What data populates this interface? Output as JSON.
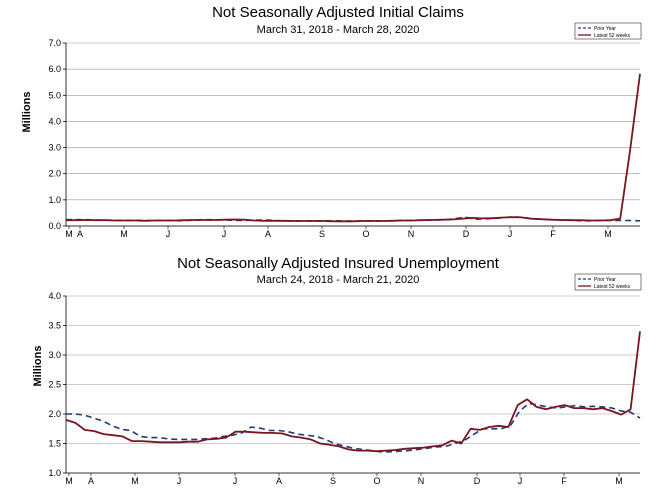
{
  "chart_data": [
    {
      "type": "line",
      "title": "Not Seasonally Adjusted Initial Claims",
      "subtitle": "March 31, 2018  -  March 28, 2020",
      "ylabel": "Millions",
      "xlabel": "",
      "ylim": [
        0,
        7
      ],
      "yticks": [
        "0.0",
        "1.0",
        "2.0",
        "3.0",
        "4.0",
        "5.0",
        "6.0",
        "7.0"
      ],
      "month_ticks": [
        "M",
        "A",
        "M",
        "J",
        "J",
        "A",
        "S",
        "O",
        "N",
        "D",
        "J",
        "F",
        "M"
      ],
      "grid": true,
      "legend_position": "top-right",
      "series": [
        {
          "name": "Prior Year",
          "color": "#1f3c78",
          "style": "dashed",
          "values": [
            0.24,
            0.25,
            0.24,
            0.23,
            0.22,
            0.22,
            0.21,
            0.22,
            0.21,
            0.21,
            0.21,
            0.21,
            0.2,
            0.22,
            0.24,
            0.24,
            0.23,
            0.22,
            0.21,
            0.22,
            0.23,
            0.22,
            0.2,
            0.2,
            0.2,
            0.2,
            0.2,
            0.2,
            0.2,
            0.19,
            0.19,
            0.2,
            0.2,
            0.2,
            0.21,
            0.21,
            0.22,
            0.23,
            0.23,
            0.24,
            0.28,
            0.34,
            0.26,
            0.27,
            0.29,
            0.32,
            0.35,
            0.33,
            0.27,
            0.26,
            0.24,
            0.23,
            0.22,
            0.2,
            0.2,
            0.21,
            0.21,
            0.21,
            0.21,
            0.2
          ]
        },
        {
          "name": "Latest 52 weeks",
          "color": "#7a1420",
          "style": "solid",
          "values": [
            0.22,
            0.22,
            0.23,
            0.22,
            0.22,
            0.21,
            0.21,
            0.21,
            0.2,
            0.21,
            0.21,
            0.21,
            0.22,
            0.23,
            0.23,
            0.23,
            0.24,
            0.25,
            0.24,
            0.21,
            0.2,
            0.2,
            0.2,
            0.19,
            0.19,
            0.19,
            0.19,
            0.18,
            0.18,
            0.18,
            0.19,
            0.19,
            0.19,
            0.2,
            0.21,
            0.21,
            0.22,
            0.23,
            0.24,
            0.25,
            0.28,
            0.31,
            0.29,
            0.3,
            0.32,
            0.34,
            0.33,
            0.28,
            0.26,
            0.24,
            0.23,
            0.22,
            0.22,
            0.21,
            0.21,
            0.22,
            0.28,
            2.9,
            5.82
          ]
        }
      ]
    },
    {
      "type": "line",
      "title": "Not Seasonally Adjusted Insured Unemployment",
      "subtitle": "March 24, 2018 - March 21, 2020",
      "ylabel": "Millions",
      "xlabel": "",
      "ylim": [
        1.0,
        4.0
      ],
      "yticks": [
        "1.0",
        "1.5",
        "2.0",
        "2.5",
        "3.0",
        "3.5",
        "4.0"
      ],
      "month_ticks": [
        "M",
        "A",
        "M",
        "J",
        "J",
        "A",
        "S",
        "O",
        "N",
        "D",
        "J",
        "F",
        "M"
      ],
      "grid": true,
      "legend_position": "top-right",
      "series": [
        {
          "name": "Prior Year",
          "color": "#1f3c78",
          "style": "dashed",
          "values": [
            2.0,
            2.0,
            1.98,
            1.93,
            1.88,
            1.8,
            1.74,
            1.72,
            1.62,
            1.6,
            1.6,
            1.58,
            1.57,
            1.57,
            1.57,
            1.58,
            1.59,
            1.62,
            1.64,
            1.68,
            1.78,
            1.76,
            1.72,
            1.72,
            1.7,
            1.66,
            1.64,
            1.62,
            1.57,
            1.5,
            1.46,
            1.42,
            1.4,
            1.38,
            1.36,
            1.36,
            1.37,
            1.38,
            1.4,
            1.42,
            1.44,
            1.45,
            1.5,
            1.55,
            1.65,
            1.75,
            1.75,
            1.75,
            1.8,
            2.05,
            2.18,
            2.15,
            2.12,
            2.1,
            2.12,
            2.14,
            2.12,
            2.13,
            2.12,
            2.1,
            2.05,
            2.03,
            1.93
          ]
        },
        {
          "name": "Latest 52 weeks",
          "color": "#7a1420",
          "style": "solid",
          "values": [
            1.9,
            1.85,
            1.73,
            1.71,
            1.66,
            1.64,
            1.62,
            1.54,
            1.54,
            1.53,
            1.52,
            1.52,
            1.52,
            1.53,
            1.53,
            1.57,
            1.58,
            1.6,
            1.7,
            1.7,
            1.69,
            1.68,
            1.68,
            1.67,
            1.62,
            1.6,
            1.57,
            1.5,
            1.48,
            1.45,
            1.4,
            1.38,
            1.38,
            1.37,
            1.38,
            1.39,
            1.41,
            1.42,
            1.43,
            1.45,
            1.47,
            1.55,
            1.5,
            1.75,
            1.73,
            1.78,
            1.8,
            1.78,
            2.15,
            2.25,
            2.12,
            2.08,
            2.12,
            2.15,
            2.1,
            2.1,
            2.08,
            2.1,
            2.05,
            1.99,
            2.08,
            3.4
          ]
        }
      ]
    }
  ]
}
